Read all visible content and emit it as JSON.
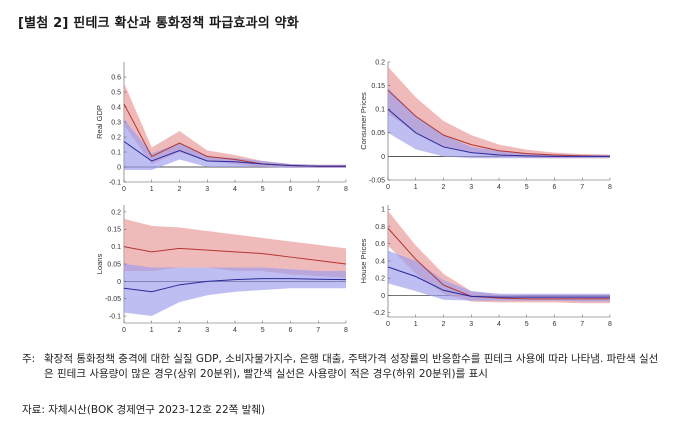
{
  "title": "[별첨 2] 핀테크 확산과 통화정책 파급효과의 약화",
  "note_prefix": "주:",
  "note_text": "확장적 통화정책 충격에 대한 실질 GDP, 소비자물가지수, 은행 대출, 주택가격 성장률의 반응함수를 핀테크 사용에 따라 나타냄. 파란색 실선은 핀테크 사용량이 많은 경우(상위 20분위), 빨간색 실선은 사용량이 적은 경우(하위 20분위)를 표시",
  "source": "자료: 자체시산(BOK 경제연구 2023-12호 22쪽 발췌)",
  "colors": {
    "red_line": "#b5352f",
    "red_band": "#e9a3a3",
    "blue_line": "#2a2a9a",
    "blue_band": "#9b9bec"
  },
  "chart_data": [
    {
      "type": "line",
      "ylabel": "Real GDP",
      "xlim": [
        0,
        8
      ],
      "ylim": [
        -0.1,
        0.7
      ],
      "xticks": [
        "0",
        "1",
        "2",
        "3",
        "4",
        "5",
        "6",
        "7",
        "8"
      ],
      "yticks": [
        "-0.1",
        "0",
        "0.1",
        "0.2",
        "0.3",
        "0.4",
        "0.5",
        "0.6"
      ],
      "x": [
        0,
        1,
        2,
        3,
        4,
        5,
        6,
        7,
        8
      ],
      "series": [
        {
          "color_key": "red",
          "values": [
            0.42,
            0.07,
            0.16,
            0.07,
            0.05,
            0.02,
            0.01,
            0.005,
            0.005
          ],
          "lower": [
            0.28,
            0.02,
            0.1,
            0.04,
            0.02,
            0.0,
            0.0,
            -0.005,
            -0.005
          ],
          "upper": [
            0.56,
            0.13,
            0.24,
            0.11,
            0.08,
            0.04,
            0.02,
            0.015,
            0.015
          ]
        },
        {
          "color_key": "blue",
          "values": [
            0.17,
            0.04,
            0.11,
            0.04,
            0.035,
            0.02,
            0.01,
            0.005,
            0.005
          ],
          "lower": [
            -0.02,
            -0.02,
            0.05,
            0.0,
            0.0,
            0.0,
            -0.005,
            -0.005,
            -0.005
          ],
          "upper": [
            0.32,
            0.09,
            0.16,
            0.07,
            0.06,
            0.04,
            0.02,
            0.015,
            0.015
          ]
        }
      ]
    },
    {
      "type": "line",
      "ylabel": "Consumer Prices",
      "xlim": [
        0,
        8
      ],
      "ylim": [
        -0.05,
        0.2
      ],
      "xticks": [
        "0",
        "1",
        "2",
        "3",
        "4",
        "5",
        "6",
        "7",
        "8"
      ],
      "yticks": [
        "-0.05",
        "0",
        "0.05",
        "0.1",
        "0.15",
        "0.2"
      ],
      "x": [
        0,
        1,
        2,
        3,
        4,
        5,
        6,
        7,
        8
      ],
      "series": [
        {
          "color_key": "red",
          "values": [
            0.14,
            0.085,
            0.045,
            0.025,
            0.012,
            0.006,
            0.003,
            0.001,
            0.0
          ],
          "lower": [
            0.09,
            0.05,
            0.02,
            0.008,
            0.0,
            -0.003,
            -0.004,
            -0.004,
            -0.004
          ],
          "upper": [
            0.19,
            0.125,
            0.075,
            0.045,
            0.025,
            0.014,
            0.008,
            0.005,
            0.004
          ]
        },
        {
          "color_key": "blue",
          "values": [
            0.1,
            0.05,
            0.02,
            0.008,
            0.003,
            0.001,
            0.0,
            0.0,
            0.0
          ],
          "lower": [
            0.05,
            0.015,
            0.0,
            -0.004,
            -0.004,
            -0.004,
            -0.004,
            -0.004,
            -0.004
          ],
          "upper": [
            0.145,
            0.085,
            0.045,
            0.02,
            0.012,
            0.006,
            0.004,
            0.003,
            0.003
          ]
        }
      ]
    },
    {
      "type": "line",
      "ylabel": "Loans",
      "xlim": [
        0,
        8
      ],
      "ylim": [
        -0.12,
        0.22
      ],
      "xticks": [
        "0",
        "1",
        "2",
        "3",
        "4",
        "5",
        "6",
        "7",
        "8"
      ],
      "yticks": [
        "-0.1",
        "-0.05",
        "0",
        "0.05",
        "0.1",
        "0.15",
        "0.2"
      ],
      "x": [
        0,
        1,
        2,
        3,
        4,
        5,
        6,
        7,
        8
      ],
      "series": [
        {
          "color_key": "red",
          "values": [
            0.1,
            0.085,
            0.095,
            0.09,
            0.085,
            0.08,
            0.07,
            0.06,
            0.05
          ],
          "lower": [
            0.03,
            0.03,
            0.04,
            0.04,
            0.03,
            0.03,
            0.02,
            0.015,
            0.01
          ],
          "upper": [
            0.18,
            0.16,
            0.155,
            0.145,
            0.135,
            0.125,
            0.115,
            0.105,
            0.095
          ]
        },
        {
          "color_key": "blue",
          "values": [
            -0.02,
            -0.03,
            -0.01,
            0.0,
            0.005,
            0.008,
            0.008,
            0.006,
            0.005
          ],
          "lower": [
            -0.09,
            -0.1,
            -0.06,
            -0.04,
            -0.03,
            -0.025,
            -0.02,
            -0.02,
            -0.02
          ],
          "upper": [
            0.05,
            0.04,
            0.04,
            0.04,
            0.04,
            0.04,
            0.035,
            0.03,
            0.03
          ]
        }
      ]
    },
    {
      "type": "line",
      "ylabel": "House Prices",
      "xlim": [
        0,
        8
      ],
      "ylim": [
        -0.25,
        1.05
      ],
      "xticks": [
        "0",
        "1",
        "2",
        "3",
        "4",
        "5",
        "6",
        "7",
        "8"
      ],
      "yticks": [
        "-0.2",
        "0",
        "0.2",
        "0.4",
        "0.6",
        "0.8",
        "1"
      ],
      "x": [
        0,
        1,
        2,
        3,
        4,
        5,
        6,
        7,
        8
      ],
      "series": [
        {
          "color_key": "red",
          "values": [
            0.78,
            0.42,
            0.12,
            -0.01,
            -0.03,
            -0.04,
            -0.04,
            -0.04,
            -0.04
          ],
          "lower": [
            0.58,
            0.25,
            0.02,
            -0.07,
            -0.08,
            -0.08,
            -0.08,
            -0.09,
            -0.09
          ],
          "upper": [
            0.98,
            0.58,
            0.25,
            0.05,
            0.01,
            0.0,
            0.0,
            0.0,
            0.0
          ]
        },
        {
          "color_key": "blue",
          "values": [
            0.33,
            0.22,
            0.06,
            -0.01,
            -0.02,
            -0.02,
            -0.02,
            -0.02,
            -0.02
          ],
          "lower": [
            0.14,
            0.05,
            -0.05,
            -0.06,
            -0.06,
            -0.06,
            -0.06,
            -0.07,
            -0.07
          ],
          "upper": [
            0.52,
            0.4,
            0.18,
            0.05,
            0.02,
            0.02,
            0.02,
            0.02,
            0.02
          ]
        }
      ]
    }
  ]
}
